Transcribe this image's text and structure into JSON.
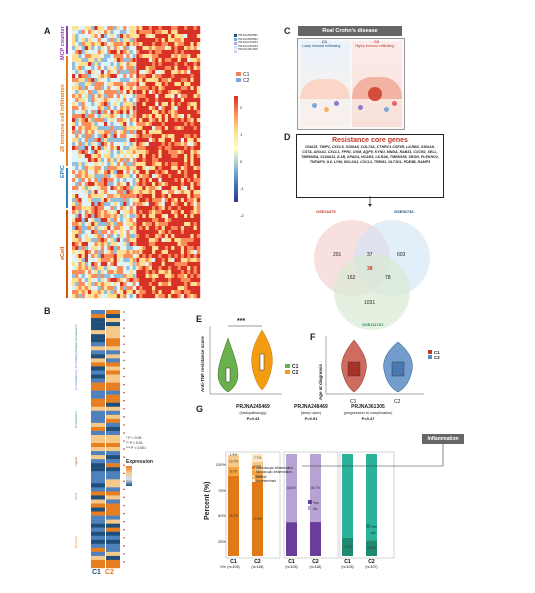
{
  "panels": {
    "a": "A",
    "b": "B",
    "c": "C",
    "d": "D",
    "e": "E",
    "f": "F",
    "g": "G"
  },
  "panel_a": {
    "group_labels": [
      "MCP counter",
      "28 immune cell infiltration",
      "EPIC",
      "xCell"
    ],
    "datasets": [
      "PRJNA590881",
      "PRJNA508693",
      "PRJNA479184",
      "PRJNA245469",
      "PRJNA361305"
    ],
    "clusters": [
      "C1",
      "C2"
    ],
    "colorbar_ticks": [
      "2",
      "1",
      "0",
      "-1",
      "-2"
    ]
  },
  "panel_b": {
    "categories": [
      "Antigen presentation",
      "Co-stimulatory / Co-inhibitory",
      "Costimulator",
      "Ligand",
      "Other",
      "Receptor"
    ],
    "significance": [
      "* P < 0.05",
      "** P < 0.01",
      "*** P < 0.001"
    ],
    "legend_title": "Expression",
    "x_labels": [
      "C1",
      "C2"
    ]
  },
  "panel_c": {
    "title": "Real Crohn's disease",
    "c1_label": "C1",
    "c1_desc": "Lowly immune infiltrating",
    "c2_label": "C2",
    "c2_desc": "Highly immune infiltrating"
  },
  "panel_d": {
    "title": "Resistance core genes",
    "genes": "GNA15, TIMP1, CXCL5, S100A8, COL7A1, CTHRC1 CSF3R, LILRB3, S100A9, CSTA, ANXA1, CXCL1, FPR1, OSM, AQP9, KYNU, MNDA, RAB31, CXCR2, SELL, TMEM45A, S100A12, IL1B, SPAG4, HCAR3, LILRA6, TMEM158, SRGN, PLEKHO1, TNFAIP3, IL6, LY96, BCL2A1, CXCL3, TREM1, GLT1D1, PDE4B, RAMP3",
    "venn_sets": [
      "GSE16879",
      "GSE52746",
      "GSE111761"
    ],
    "venn_counts": {
      "a_only": "201",
      "b_only": "603",
      "c_only": "1031",
      "ab": "37",
      "ac": "162",
      "bc": "78",
      "abc": "38"
    }
  },
  "panel_e": {
    "ylabel": "Anti-TNF resistance score",
    "significance": "***",
    "legend": [
      "C1",
      "C2"
    ]
  },
  "panel_f": {
    "ylabel": "Age at diagnosis",
    "x_labels": [
      "C1",
      "C2"
    ],
    "legend": [
      "C1",
      "C2"
    ]
  },
  "panel_g": {
    "ylabel": "Percent (%)",
    "y_ticks": [
      "100%",
      "75%",
      "50%",
      "25%",
      "0%"
    ],
    "annotation": "Inflammation",
    "studies": [
      {
        "title": "PRJNA245469",
        "subtitle": "(histopathology)",
        "p": "P=0.43",
        "groups": [
          "C1",
          "C2"
        ],
        "ns": [
          "(n=103)",
          "(n=118)"
        ],
        "legend": [
          "Macroscopic inflammation",
          "Microscopic inflammation",
          "Normal",
          "Undetermined"
        ],
        "colors": [
          "#e17a16",
          "#f3a340",
          "#f5c98a",
          "#fbe5c4"
        ],
        "segments": [
          {
            "group": "C1",
            "values": [
              78.7,
              8.7,
              10.7,
              1.9
            ],
            "labels": [
              "78.7%",
              "8.7%",
              "10.7%",
              "1.9%"
            ]
          },
          {
            "group": "C2",
            "values": [
              72.9,
              10.1,
              9.3,
              7.7
            ],
            "labels": [
              "72.9%",
              "10.1%",
              "9.3%",
              "7.7%"
            ]
          }
        ]
      },
      {
        "title": "PRJNA248469",
        "subtitle": "(deep ulcer)",
        "p": "P=0.91",
        "groups": [
          "C1",
          "C2"
        ],
        "ns": [
          "(n=103)",
          "(n=118)"
        ],
        "legend": [
          "Yes",
          "No"
        ],
        "colors": [
          "#6a3d9a",
          "#b7a2d4"
        ],
        "segments": [
          {
            "group": "C1",
            "values": [
              33.2,
              66.8
            ],
            "labels": [
              "",
              "66.8%"
            ]
          },
          {
            "group": "C2",
            "values": [
              33.3,
              66.7
            ],
            "labels": [
              "",
              "66.7%"
            ]
          }
        ]
      },
      {
        "title": "PRJNA361305",
        "subtitle": "(progression to complication)",
        "p": "P=0.47",
        "groups": [
          "C1",
          "C2"
        ],
        "ns": [
          "(n=103)",
          "(n=107)"
        ],
        "legend": [
          "Yes",
          "No"
        ],
        "colors": [
          "#1f8a70",
          "#2bb39a"
        ],
        "segments": [
          {
            "group": "C1",
            "values": [
              17.7,
              82.3
            ],
            "labels": [
              "17.7%",
              ""
            ]
          },
          {
            "group": "C2",
            "values": [
              15.4,
              84.6
            ],
            "labels": [
              "15.4%",
              ""
            ]
          }
        ]
      }
    ]
  }
}
